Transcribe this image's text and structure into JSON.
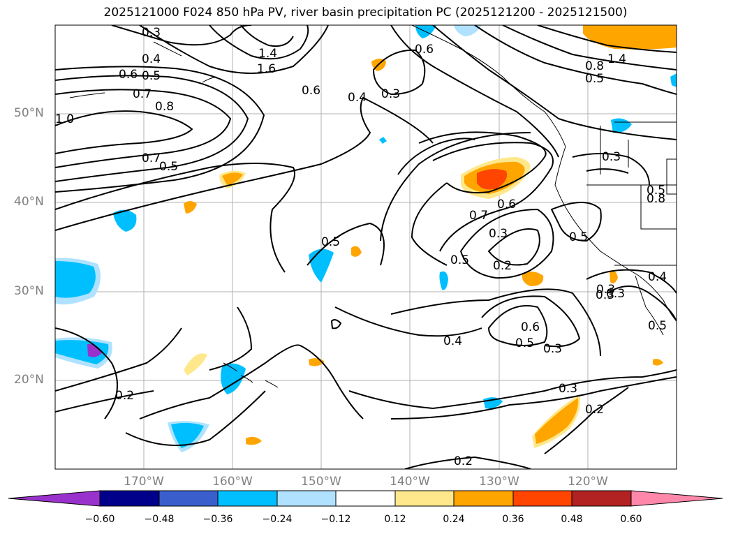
{
  "title": "2025121000 F024 850 hPa PV, river basin precipitation PC (2025121200 - 2025121500)",
  "map": {
    "extent": {
      "lon_min": -180,
      "lon_max": -110,
      "lat_min": 10,
      "lat_max": 60
    },
    "lat_labels": [
      "50°N",
      "40°N",
      "30°N",
      "20°N"
    ],
    "lon_labels": [
      "170°W",
      "160°W",
      "150°W",
      "140°W",
      "130°W",
      "120°W"
    ],
    "contour_labels": [
      "0.3",
      "0.4",
      "0.5",
      "0.6",
      "0.7",
      "0.8",
      "1.0",
      "1.4",
      "1.6",
      "1.4",
      "0.8",
      "0.5",
      "0.6",
      "0.4",
      "0.3",
      "0.7",
      "0.5",
      "0.3",
      "0.5",
      "0.2",
      "0.7",
      "0.6",
      "0.3",
      "0.5",
      "0.6",
      "0.5",
      "0.3",
      "0.4",
      "0.3",
      "0.2",
      "0.2",
      "0.2",
      "0.3",
      "0.8",
      "0.3",
      "0.5",
      "0.3",
      "0.4",
      "0.5",
      "0.6",
      "1.0",
      "0.5"
    ]
  },
  "colorbar": {
    "colors": [
      "#9932cc",
      "#00008b",
      "#3a5fcd",
      "#00bfff",
      "#b0e2ff",
      "#ffffff",
      "#ffe88b",
      "#ffa500",
      "#ff4500",
      "#b22222",
      "#ff88aa"
    ],
    "tick_labels": [
      "−0.60",
      "−0.48",
      "−0.36",
      "−0.24",
      "−0.12",
      "0.12",
      "0.24",
      "0.36",
      "0.48",
      "0.60"
    ]
  }
}
